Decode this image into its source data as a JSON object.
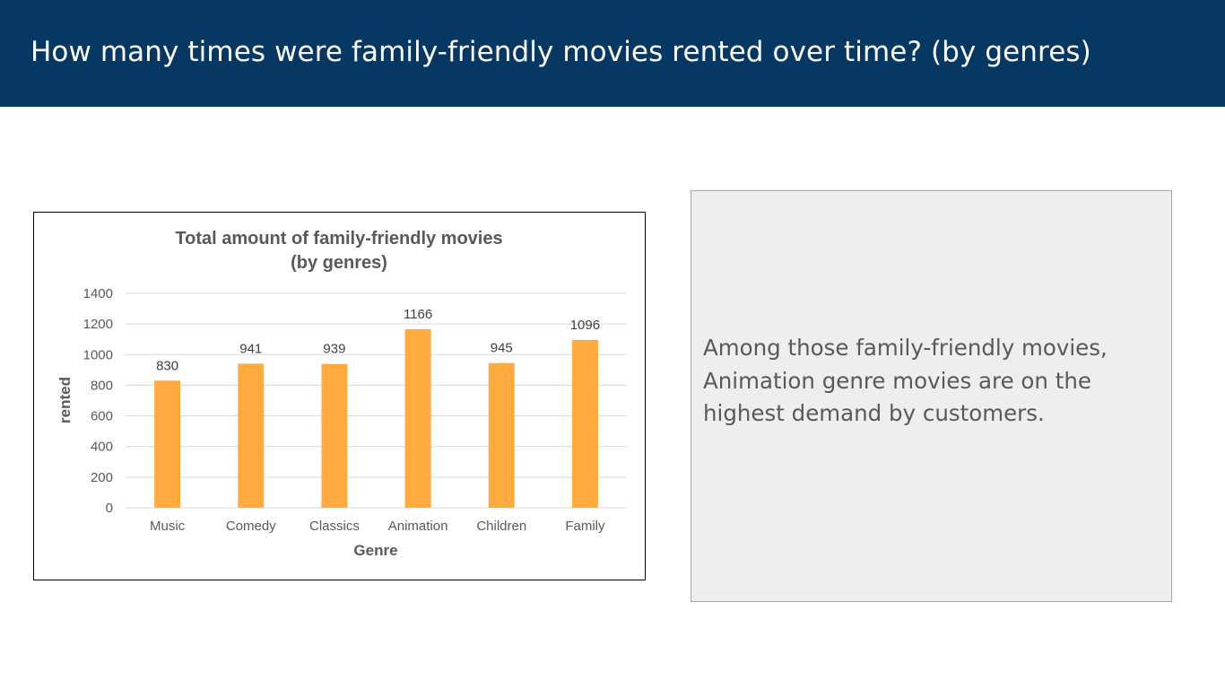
{
  "slide": {
    "title": "How many times were family-friendly movies rented over time? (by genres)"
  },
  "note": {
    "text": "Among those family-friendly movies, Animation genre movies are on the highest demand by customers."
  },
  "colors": {
    "header": "#073763",
    "bar": "#ffab40",
    "note_background": "#eeeeee"
  },
  "chart_data": {
    "type": "bar",
    "title_lines": [
      "Total amount of family-friendly movies",
      "(by genres)"
    ],
    "xlabel": "Genre",
    "ylabel": "rented",
    "categories": [
      "Music",
      "Comedy",
      "Classics",
      "Animation",
      "Children",
      "Family"
    ],
    "values": [
      830,
      941,
      939,
      1166,
      945,
      1096
    ],
    "ylim": [
      0,
      1400
    ],
    "yticks": [
      0,
      200,
      400,
      600,
      800,
      1000,
      1200,
      1400
    ],
    "data_labels": true,
    "grid": true,
    "legend": "none"
  }
}
